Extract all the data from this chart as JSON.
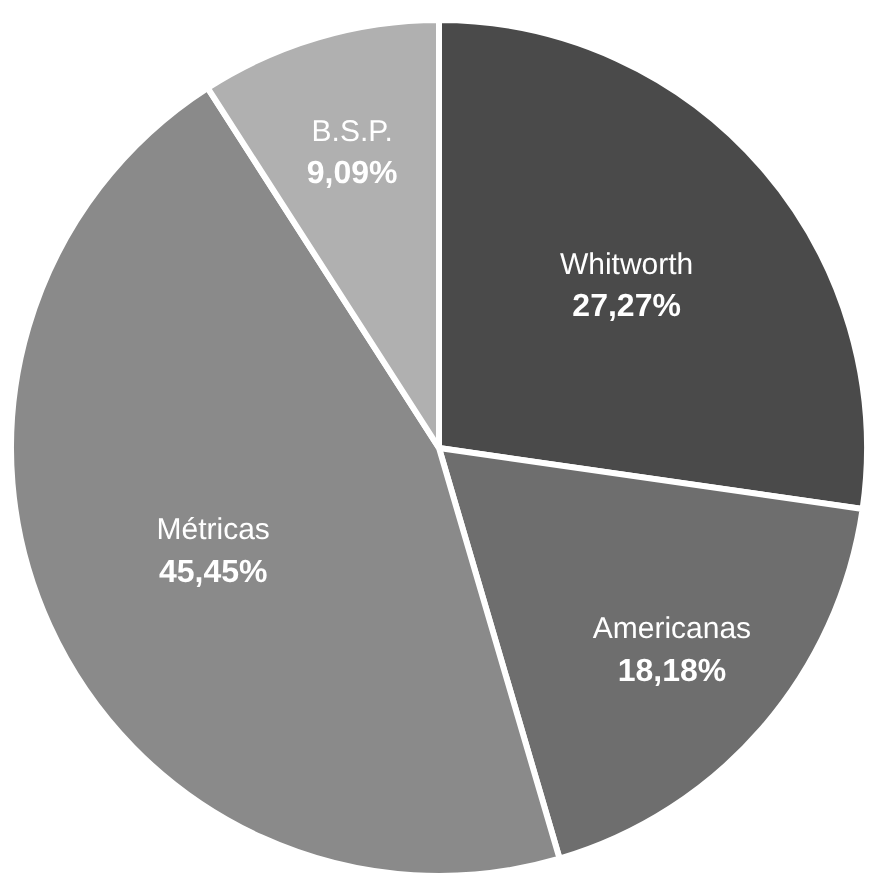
{
  "chart_data": {
    "type": "pie",
    "categories": [
      "Whitworth",
      "Americanas",
      "Métricas",
      "B.S.P."
    ],
    "values": [
      27.27,
      18.18,
      45.45,
      9.09
    ],
    "colors": [
      "#4a4a4a",
      "#6e6e6e",
      "#8a8a8a",
      "#b0b0b0"
    ],
    "value_labels": [
      "27,27%",
      "18,18%",
      "45,45%",
      "9,09%"
    ],
    "legend": false
  }
}
